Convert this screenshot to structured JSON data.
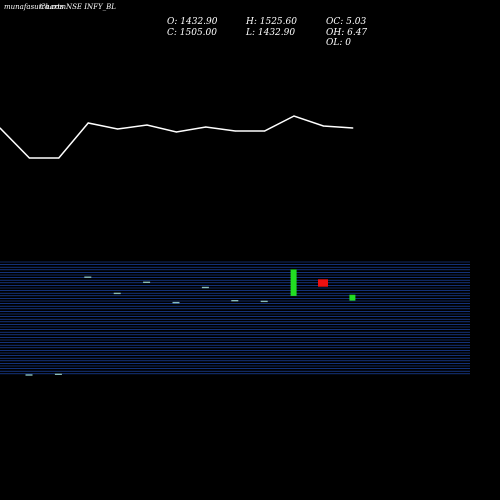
{
  "header": {
    "site_label": "munafasutra.com",
    "chart_label": "Charts NSE INFY_BL"
  },
  "stats": {
    "open": "O: 1432.90",
    "close": "C: 1505.00",
    "high": "H: 1525.60",
    "low": "L: 1432.90",
    "oc": "OC: 5.03",
    "oh": "OH: 6.47",
    "ol": "OL: 0"
  },
  "colors": {
    "background": "#000000",
    "line": "#ffffff",
    "grid": "#1f4fbf",
    "bull": "#22dd22",
    "bear": "#ee1111",
    "flat": "#88bbbb"
  },
  "chart_data": [
    {
      "type": "line",
      "title": "",
      "x": [
        1,
        2,
        3,
        4,
        5,
        6,
        7,
        8,
        9,
        10,
        11,
        12,
        13
      ],
      "series": [
        {
          "values": [
            124,
            154,
            154,
            119,
            125,
            121,
            128,
            123,
            127,
            127,
            112,
            122,
            124
          ]
        }
      ],
      "ylim": [
        100,
        160
      ],
      "grid": false
    },
    {
      "type": "candlestick",
      "title": "",
      "price_range": [
        1215,
        1525
      ],
      "candles": [
        {
          "x": 1,
          "open": 1218,
          "close": 1218,
          "kind": "flat"
        },
        {
          "x": 2,
          "open": 1220,
          "close": 1220,
          "kind": "flat"
        },
        {
          "x": 3,
          "open": 1484,
          "close": 1484,
          "kind": "flat"
        },
        {
          "x": 4,
          "open": 1440,
          "close": 1440,
          "kind": "flat"
        },
        {
          "x": 5,
          "open": 1470,
          "close": 1470,
          "kind": "flat"
        },
        {
          "x": 6,
          "open": 1415,
          "close": 1415,
          "kind": "flat"
        },
        {
          "x": 7,
          "open": 1456,
          "close": 1456,
          "kind": "flat"
        },
        {
          "x": 8,
          "open": 1420,
          "close": 1420,
          "kind": "flat"
        },
        {
          "x": 9,
          "open": 1418,
          "close": 1418,
          "kind": "flat"
        },
        {
          "x": 10,
          "open": 1432.9,
          "close": 1505,
          "kind": "bull"
        },
        {
          "x": 11,
          "open": 1478,
          "close": 1458,
          "kind": "bear"
        },
        {
          "x": 12,
          "open": 1420,
          "close": 1436,
          "kind": "bull"
        }
      ],
      "grid": true
    }
  ]
}
